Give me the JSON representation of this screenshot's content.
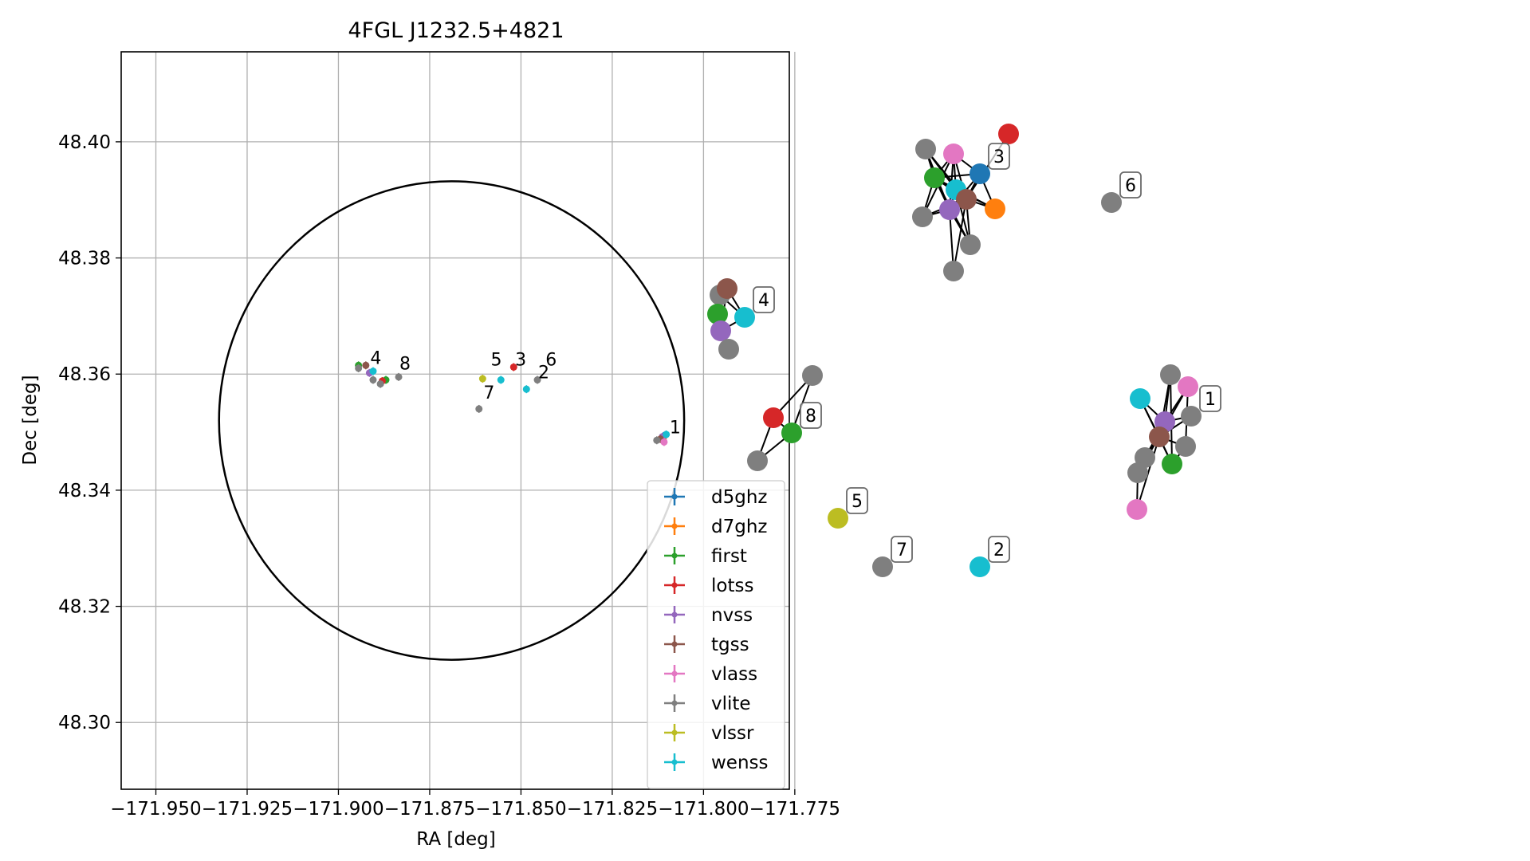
{
  "chart_data": [
    {
      "type": "scatter",
      "title": "4FGL J1232.5+4821",
      "xlabel": "RA [deg]",
      "ylabel": "Dec [deg]",
      "xlim": [
        -171.9595,
        -171.7765
      ],
      "ylim": [
        48.2885,
        48.4155
      ],
      "xticks": [
        -171.95,
        -171.925,
        -171.9,
        -171.875,
        -171.85,
        -171.825,
        -171.8,
        -171.775
      ],
      "xtick_labels": [
        "−171.950",
        "−171.925",
        "−171.900",
        "−171.875",
        "−171.850",
        "−171.825",
        "−171.800",
        "−171.775"
      ],
      "yticks": [
        48.3,
        48.32,
        48.34,
        48.36,
        48.38,
        48.4
      ],
      "ytick_labels": [
        "48.30",
        "48.32",
        "48.34",
        "48.36",
        "48.38",
        "48.40"
      ],
      "grid": true,
      "legend_position": "lower-right",
      "ellipse": {
        "center_ra": -171.869,
        "center_dec": 48.352,
        "semi_axis_ra": 0.0637,
        "semi_axis_dec": 0.0412
      },
      "series": [
        {
          "name": "d5ghz",
          "color": "#1f77b4",
          "points": [
            {
              "x": -171.8105,
              "y": 48.3495
            }
          ]
        },
        {
          "name": "d7ghz",
          "color": "#ff7f0e",
          "points": [
            {
              "x": -171.811,
              "y": 48.349
            }
          ]
        },
        {
          "name": "first",
          "color": "#2ca02c",
          "points": [
            {
              "x": -171.8945,
              "y": 48.3615
            },
            {
              "x": -171.887,
              "y": 48.359
            }
          ]
        },
        {
          "name": "lotss",
          "color": "#d62728",
          "points": [
            {
              "x": -171.852,
              "y": 48.3612
            },
            {
              "x": -171.888,
              "y": 48.3588
            }
          ]
        },
        {
          "name": "nvss",
          "color": "#9467bd",
          "points": [
            {
              "x": -171.8915,
              "y": 48.3602
            },
            {
              "x": -171.8113,
              "y": 48.3492
            }
          ]
        },
        {
          "name": "tgss",
          "color": "#8c564b",
          "points": [
            {
              "x": -171.8925,
              "y": 48.3615
            },
            {
              "x": -171.8118,
              "y": 48.3488
            }
          ]
        },
        {
          "name": "vlass",
          "color": "#e377c2",
          "points": [
            {
              "x": -171.8108,
              "y": 48.3483
            }
          ]
        },
        {
          "name": "vlite",
          "color": "#7f7f7f",
          "points": [
            {
              "x": -171.8945,
              "y": 48.361
            },
            {
              "x": -171.8905,
              "y": 48.359
            },
            {
              "x": -171.8885,
              "y": 48.3583
            },
            {
              "x": -171.8835,
              "y": 48.3595
            },
            {
              "x": -171.8615,
              "y": 48.354
            },
            {
              "x": -171.8455,
              "y": 48.359
            },
            {
              "x": -171.8128,
              "y": 48.3486
            }
          ]
        },
        {
          "name": "vlssr",
          "color": "#bcbd22",
          "points": [
            {
              "x": -171.8605,
              "y": 48.3592
            }
          ]
        },
        {
          "name": "wenss",
          "color": "#17becf",
          "points": [
            {
              "x": -171.8905,
              "y": 48.3605
            },
            {
              "x": -171.8555,
              "y": 48.359
            },
            {
              "x": -171.8485,
              "y": 48.3574
            },
            {
              "x": -171.8102,
              "y": 48.3496
            }
          ]
        }
      ],
      "annotations": [
        {
          "text": "1",
          "x": -171.8095,
          "y": 48.3495
        },
        {
          "text": "2",
          "x": -171.8455,
          "y": 48.359
        },
        {
          "text": "3",
          "x": -171.8518,
          "y": 48.3612
        },
        {
          "text": "4",
          "x": -171.8915,
          "y": 48.3615
        },
        {
          "text": "5",
          "x": -171.8585,
          "y": 48.3612
        },
        {
          "text": "6",
          "x": -171.8435,
          "y": 48.3612
        },
        {
          "text": "7",
          "x": -171.8605,
          "y": 48.3555
        },
        {
          "text": "8",
          "x": -171.8835,
          "y": 48.3605
        }
      ]
    },
    {
      "type": "network",
      "nodes": [
        {
          "id": "g3a",
          "color": "#7f7f7f",
          "pos": [
            1161,
            187
          ]
        },
        {
          "id": "g3b",
          "color": "#e377c2",
          "pos": [
            1196,
            193
          ]
        },
        {
          "id": "g3c",
          "color": "#d62728",
          "pos": [
            1265,
            168
          ]
        },
        {
          "id": "g3d",
          "color": "#1f77b4",
          "pos": [
            1229,
            218
          ]
        },
        {
          "id": "g3e",
          "color": "#2ca02c",
          "pos": [
            1172,
            223
          ]
        },
        {
          "id": "g3f",
          "color": "#17becf",
          "pos": [
            1199,
            238
          ]
        },
        {
          "id": "g3g",
          "color": "#8c564b",
          "pos": [
            1212,
            250
          ]
        },
        {
          "id": "g3h",
          "color": "#ff7f0e",
          "pos": [
            1248,
            262
          ]
        },
        {
          "id": "g3i",
          "color": "#9467bd",
          "pos": [
            1191,
            263
          ]
        },
        {
          "id": "g3j",
          "color": "#7f7f7f",
          "pos": [
            1157,
            272
          ]
        },
        {
          "id": "g3k",
          "color": "#7f7f7f",
          "pos": [
            1217,
            307
          ]
        },
        {
          "id": "g3l",
          "color": "#7f7f7f",
          "pos": [
            1196,
            340
          ]
        },
        {
          "id": "g6",
          "color": "#7f7f7f",
          "pos": [
            1394,
            254
          ]
        },
        {
          "id": "g4a",
          "color": "#7f7f7f",
          "pos": [
            903,
            370
          ]
        },
        {
          "id": "g4b",
          "color": "#8c564b",
          "pos": [
            912,
            362
          ]
        },
        {
          "id": "g4c",
          "color": "#2ca02c",
          "pos": [
            900,
            394
          ]
        },
        {
          "id": "g4d",
          "color": "#17becf",
          "pos": [
            934,
            398
          ]
        },
        {
          "id": "g4e",
          "color": "#9467bd",
          "pos": [
            904,
            415
          ]
        },
        {
          "id": "g4f",
          "color": "#7f7f7f",
          "pos": [
            914,
            438
          ]
        },
        {
          "id": "g8a",
          "color": "#7f7f7f",
          "pos": [
            1019,
            471
          ]
        },
        {
          "id": "g8b",
          "color": "#d62728",
          "pos": [
            970,
            524
          ]
        },
        {
          "id": "g8c",
          "color": "#2ca02c",
          "pos": [
            993,
            543
          ]
        },
        {
          "id": "g8d",
          "color": "#7f7f7f",
          "pos": [
            950,
            578
          ]
        },
        {
          "id": "g1a",
          "color": "#7f7f7f",
          "pos": [
            1468,
            470
          ]
        },
        {
          "id": "g1b",
          "color": "#e377c2",
          "pos": [
            1490,
            485
          ]
        },
        {
          "id": "g1c",
          "color": "#17becf",
          "pos": [
            1430,
            500
          ]
        },
        {
          "id": "g1d",
          "color": "#9467bd",
          "pos": [
            1461,
            529
          ]
        },
        {
          "id": "g1e",
          "color": "#7f7f7f",
          "pos": [
            1494,
            522
          ]
        },
        {
          "id": "g1f",
          "color": "#8c564b",
          "pos": [
            1454,
            548
          ]
        },
        {
          "id": "g1g",
          "color": "#7f7f7f",
          "pos": [
            1487,
            560
          ]
        },
        {
          "id": "g1h",
          "color": "#7f7f7f",
          "pos": [
            1436,
            574
          ]
        },
        {
          "id": "g1i",
          "color": "#2ca02c",
          "pos": [
            1470,
            582
          ]
        },
        {
          "id": "g1j",
          "color": "#7f7f7f",
          "pos": [
            1427,
            593
          ]
        },
        {
          "id": "g1k",
          "color": "#e377c2",
          "pos": [
            1426,
            639
          ]
        },
        {
          "id": "g5",
          "color": "#bcbd22",
          "pos": [
            1051,
            650
          ]
        },
        {
          "id": "g7",
          "color": "#7f7f7f",
          "pos": [
            1107,
            711
          ]
        },
        {
          "id": "g2",
          "color": "#17becf",
          "pos": [
            1229,
            711
          ]
        }
      ],
      "edges": [
        [
          "g3a",
          "g3e"
        ],
        [
          "g3a",
          "g3f"
        ],
        [
          "g3a",
          "g3g"
        ],
        [
          "g3a",
          "g3i"
        ],
        [
          "g3b",
          "g3e"
        ],
        [
          "g3b",
          "g3f"
        ],
        [
          "g3b",
          "g3g"
        ],
        [
          "g3b",
          "g3i"
        ],
        [
          "g3b",
          "g3d"
        ],
        [
          "g3b",
          "g3j"
        ],
        [
          "g3c",
          "g3g"
        ],
        [
          "g3d",
          "g3e"
        ],
        [
          "g3d",
          "g3i"
        ],
        [
          "g3d",
          "g3g"
        ],
        [
          "g3d",
          "g3h"
        ],
        [
          "g3e",
          "g3f"
        ],
        [
          "g3e",
          "g3g"
        ],
        [
          "g3e",
          "g3i"
        ],
        [
          "g3e",
          "g3j"
        ],
        [
          "g3e",
          "g3h"
        ],
        [
          "g3e",
          "g3k"
        ],
        [
          "g3f",
          "g3g"
        ],
        [
          "g3f",
          "g3i"
        ],
        [
          "g3f",
          "g3h"
        ],
        [
          "g3f",
          "g3k"
        ],
        [
          "g3g",
          "g3h"
        ],
        [
          "g3g",
          "g3i"
        ],
        [
          "g3g",
          "g3j"
        ],
        [
          "g3g",
          "g3k"
        ],
        [
          "g3g",
          "g3l"
        ],
        [
          "g3i",
          "g3j"
        ],
        [
          "g3i",
          "g3k"
        ],
        [
          "g3i",
          "g3l"
        ],
        [
          "g4a",
          "g4b"
        ],
        [
          "g4a",
          "g4c"
        ],
        [
          "g4a",
          "g4d"
        ],
        [
          "g4b",
          "g4c"
        ],
        [
          "g4b",
          "g4d"
        ],
        [
          "g4b",
          "g4e"
        ],
        [
          "g4c",
          "g4e"
        ],
        [
          "g4c",
          "g4f"
        ],
        [
          "g4d",
          "g4e"
        ],
        [
          "g4e",
          "g4f"
        ],
        [
          "g8a",
          "g8b"
        ],
        [
          "g8a",
          "g8c"
        ],
        [
          "g8b",
          "g8c"
        ],
        [
          "g8b",
          "g8d"
        ],
        [
          "g8c",
          "g8d"
        ],
        [
          "g1a",
          "g1d"
        ],
        [
          "g1a",
          "g1f"
        ],
        [
          "g1a",
          "g1i"
        ],
        [
          "g1b",
          "g1d"
        ],
        [
          "g1b",
          "g1f"
        ],
        [
          "g1b",
          "g1g"
        ],
        [
          "g1c",
          "g1d"
        ],
        [
          "g1c",
          "g1f"
        ],
        [
          "g1c",
          "g1i"
        ],
        [
          "g1d",
          "g1f"
        ],
        [
          "g1d",
          "g1e"
        ],
        [
          "g1d",
          "g1h"
        ],
        [
          "g1e",
          "g1f"
        ],
        [
          "g1f",
          "g1g"
        ],
        [
          "g1f",
          "g1h"
        ],
        [
          "g1f",
          "g1i"
        ],
        [
          "g1f",
          "g1j"
        ],
        [
          "g1g",
          "g1i"
        ],
        [
          "g1h",
          "g1j"
        ],
        [
          "g1j",
          "g1k"
        ],
        [
          "g1f",
          "g1k"
        ]
      ],
      "labels": [
        {
          "text": "3",
          "anchor": "g3d"
        },
        {
          "text": "6",
          "anchor": "g6"
        },
        {
          "text": "4",
          "anchor": "g4d"
        },
        {
          "text": "8",
          "anchor": "g8c"
        },
        {
          "text": "1",
          "anchor": "g1e"
        },
        {
          "text": "5",
          "anchor": "g5"
        },
        {
          "text": "7",
          "anchor": "g7"
        },
        {
          "text": "2",
          "anchor": "g2"
        }
      ]
    }
  ]
}
